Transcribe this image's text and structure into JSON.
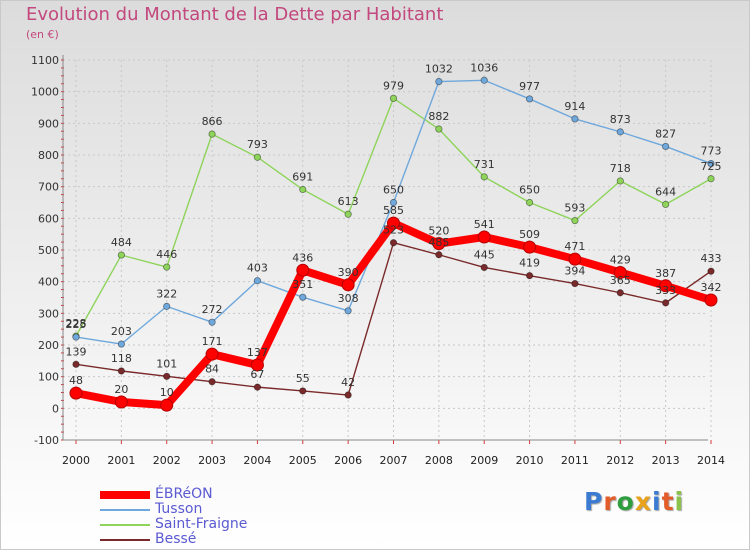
{
  "header": {
    "title": "Evolution du Montant de la Dette par Habitant",
    "unit": "(en €)"
  },
  "logo": {
    "letters": [
      "P",
      "r",
      "o",
      "x",
      "i",
      "t",
      "i"
    ],
    "colors": [
      "#3b7bd1",
      "#e25d2a",
      "#2e9e3e",
      "#e8a21c",
      "#3b7bd1",
      "#e25d2a",
      "#8bc34a"
    ]
  },
  "chart_data": {
    "type": "line",
    "title": "Evolution du Montant de la Dette par Habitant",
    "ylabel": "(en €)",
    "xlabel": "",
    "x": [
      "2000",
      "2001",
      "2002",
      "2003",
      "2004",
      "2005",
      "2006",
      "2007",
      "2008",
      "2009",
      "2010",
      "2011",
      "2012",
      "2013",
      "2014"
    ],
    "ylim": [
      -100,
      1100
    ],
    "yticks": [
      "-100",
      "0",
      "100",
      "200",
      "300",
      "400",
      "500",
      "600",
      "700",
      "800",
      "900",
      "1000",
      "1100"
    ],
    "grid": true,
    "legend_position": "bottom-left",
    "series": [
      {
        "name": "Bessé",
        "color": "#7a2a2a",
        "values": [
          139,
          118,
          101,
          84,
          67,
          55,
          42,
          523,
          485,
          445,
          419,
          394,
          365,
          333,
          433
        ],
        "labels": [
          "139",
          "118",
          "101",
          "84",
          "67",
          "55",
          "42",
          "523",
          "485",
          "445",
          "419",
          "394",
          "365",
          "333",
          "433"
        ]
      },
      {
        "name": "Saint-Fraigne",
        "color": "#8ed45a",
        "values": [
          228,
          484,
          446,
          866,
          793,
          691,
          613,
          979,
          882,
          731,
          650,
          593,
          718,
          644,
          725
        ],
        "labels": [
          "228",
          "484",
          "446",
          "866",
          "793",
          "691",
          "613",
          "979",
          "882",
          "731",
          "650",
          "593",
          "718",
          "644",
          "725"
        ]
      },
      {
        "name": "Tusson",
        "color": "#6fa8dc",
        "values": [
          225,
          203,
          322,
          272,
          403,
          351,
          308,
          650,
          1032,
          1036,
          977,
          914,
          873,
          827,
          773
        ],
        "labels": [
          "225",
          "203",
          "322",
          "272",
          "403",
          "351",
          "308",
          "650",
          "1032",
          "1036",
          "977",
          "914",
          "873",
          "827",
          "773"
        ]
      },
      {
        "name": "ÉBRéON",
        "color": "#ff0000",
        "values": [
          48,
          20,
          10,
          171,
          137,
          436,
          390,
          585,
          520,
          541,
          509,
          471,
          429,
          387,
          342
        ],
        "labels": [
          "48",
          "20",
          "10",
          "171",
          "137",
          "436",
          "390",
          "585",
          "520",
          "541",
          "509",
          "471",
          "429",
          "387",
          "342"
        ]
      }
    ],
    "legend": [
      "ÉBRéON",
      "Tusson",
      "Saint-Fraigne",
      "Bessé"
    ]
  }
}
